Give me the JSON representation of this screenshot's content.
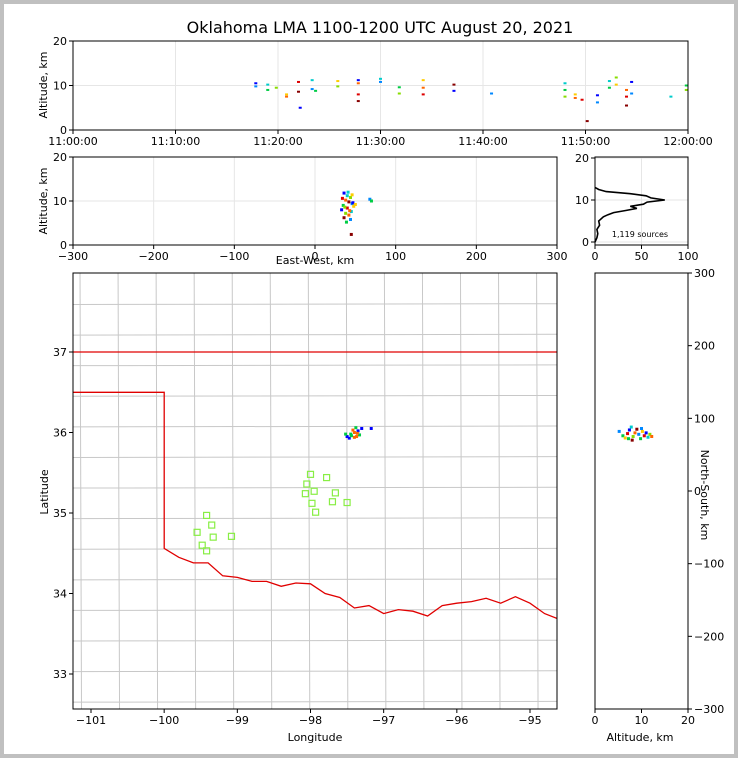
{
  "title": "Oklahoma LMA 1100-1200 UTC August 20, 2021",
  "sources_label": "1,119 sources",
  "colors": {
    "state_border": "#e00000",
    "county_lines": "#c8c8c8",
    "station_marker": "#88ee44",
    "histogram": "#000000"
  },
  "chart_data": [
    {
      "id": "time_altitude",
      "type": "scatter",
      "xlabel": "",
      "ylabel": "Altitude, km",
      "xlim": [
        "11:00:00",
        "12:00:00"
      ],
      "ylim": [
        0,
        20
      ],
      "xticks": [
        "11:00:00",
        "11:10:00",
        "11:20:00",
        "11:30:00",
        "11:40:00",
        "11:50:00",
        "12:00:00"
      ],
      "yticks": [
        "0",
        "10",
        "20"
      ],
      "grid": true,
      "points": [
        {
          "t": "11:17:50",
          "alt": 10.5
        },
        {
          "t": "11:17:50",
          "alt": 9.8
        },
        {
          "t": "11:19:00",
          "alt": 10.2
        },
        {
          "t": "11:19:00",
          "alt": 9.0
        },
        {
          "t": "11:19:50",
          "alt": 9.5
        },
        {
          "t": "11:20:50",
          "alt": 8.0
        },
        {
          "t": "11:20:50",
          "alt": 7.5
        },
        {
          "t": "11:22:00",
          "alt": 10.8
        },
        {
          "t": "11:22:00",
          "alt": 8.6
        },
        {
          "t": "11:22:10",
          "alt": 5.0
        },
        {
          "t": "11:23:20",
          "alt": 9.2
        },
        {
          "t": "11:23:20",
          "alt": 11.2
        },
        {
          "t": "11:23:40",
          "alt": 8.8
        },
        {
          "t": "11:25:50",
          "alt": 9.8
        },
        {
          "t": "11:25:50",
          "alt": 11.0
        },
        {
          "t": "11:27:50",
          "alt": 10.5
        },
        {
          "t": "11:27:50",
          "alt": 8.0
        },
        {
          "t": "11:27:50",
          "alt": 6.5
        },
        {
          "t": "11:27:50",
          "alt": 11.2
        },
        {
          "t": "11:30:00",
          "alt": 10.8
        },
        {
          "t": "11:30:00",
          "alt": 11.5
        },
        {
          "t": "11:31:50",
          "alt": 9.6
        },
        {
          "t": "11:31:50",
          "alt": 8.2
        },
        {
          "t": "11:34:10",
          "alt": 11.2
        },
        {
          "t": "11:34:10",
          "alt": 9.5
        },
        {
          "t": "11:34:10",
          "alt": 8.0
        },
        {
          "t": "11:37:10",
          "alt": 10.2
        },
        {
          "t": "11:37:10",
          "alt": 8.8
        },
        {
          "t": "11:40:50",
          "alt": 8.2
        },
        {
          "t": "11:48:00",
          "alt": 10.5
        },
        {
          "t": "11:48:00",
          "alt": 9.0
        },
        {
          "t": "11:48:00",
          "alt": 7.5
        },
        {
          "t": "11:49:00",
          "alt": 8.0
        },
        {
          "t": "11:49:00",
          "alt": 7.2
        },
        {
          "t": "11:49:40",
          "alt": 6.8
        },
        {
          "t": "11:50:10",
          "alt": 2.0
        },
        {
          "t": "11:51:10",
          "alt": 7.8
        },
        {
          "t": "11:51:10",
          "alt": 6.2
        },
        {
          "t": "11:52:20",
          "alt": 11.0
        },
        {
          "t": "11:52:20",
          "alt": 9.5
        },
        {
          "t": "11:53:00",
          "alt": 11.8
        },
        {
          "t": "11:53:00",
          "alt": 10.2
        },
        {
          "t": "11:54:00",
          "alt": 9.0
        },
        {
          "t": "11:54:00",
          "alt": 7.5
        },
        {
          "t": "11:54:00",
          "alt": 5.5
        },
        {
          "t": "11:54:30",
          "alt": 10.8
        },
        {
          "t": "11:54:30",
          "alt": 8.2
        },
        {
          "t": "11:58:20",
          "alt": 7.5
        },
        {
          "t": "11:59:50",
          "alt": 10.0
        },
        {
          "t": "11:59:50",
          "alt": 9.0
        }
      ]
    },
    {
      "id": "ew_altitude",
      "type": "scatter",
      "xlabel": "East-West, km",
      "ylabel": "Altitude, km",
      "xlim": [
        -300,
        300
      ],
      "ylim": [
        0,
        20
      ],
      "xticks": [
        "−300",
        "−200",
        "−100",
        "0",
        "100",
        "200",
        "300"
      ],
      "yticks": [
        "0",
        "10",
        "20"
      ],
      "grid": true,
      "points": [
        {
          "x": 36,
          "z": 11.8
        },
        {
          "x": 40,
          "z": 11.2
        },
        {
          "x": 44,
          "z": 10.8
        },
        {
          "x": 38,
          "z": 10.2
        },
        {
          "x": 42,
          "z": 9.8
        },
        {
          "x": 46,
          "z": 9.4
        },
        {
          "x": 35,
          "z": 9.0
        },
        {
          "x": 48,
          "z": 8.8
        },
        {
          "x": 40,
          "z": 8.4
        },
        {
          "x": 33,
          "z": 8.0
        },
        {
          "x": 45,
          "z": 7.6
        },
        {
          "x": 38,
          "z": 7.2
        },
        {
          "x": 42,
          "z": 6.8
        },
        {
          "x": 36,
          "z": 6.2
        },
        {
          "x": 44,
          "z": 5.8
        },
        {
          "x": 39,
          "z": 5.2
        },
        {
          "x": 46,
          "z": 11.4
        },
        {
          "x": 34,
          "z": 10.6
        },
        {
          "x": 47,
          "z": 9.6
        },
        {
          "x": 41,
          "z": 12.0
        },
        {
          "x": 37,
          "z": 8.6
        },
        {
          "x": 43,
          "z": 7.8
        },
        {
          "x": 45,
          "z": 2.4
        },
        {
          "x": 68,
          "z": 10.4
        },
        {
          "x": 70,
          "z": 10.0
        },
        {
          "x": 50,
          "z": 9.2
        }
      ]
    },
    {
      "id": "altitude_histogram",
      "type": "line",
      "xlim": [
        0,
        100
      ],
      "ylim": [
        0,
        20
      ],
      "xticks": [
        "0",
        "50",
        "100"
      ],
      "yticks": [
        "0",
        "10",
        "20"
      ],
      "grid": true,
      "profile": [
        {
          "count": 0,
          "alt": 0.0
        },
        {
          "count": 2,
          "alt": 1.0
        },
        {
          "count": 3,
          "alt": 2.0
        },
        {
          "count": 2,
          "alt": 3.0
        },
        {
          "count": 5,
          "alt": 4.0
        },
        {
          "count": 4,
          "alt": 5.0
        },
        {
          "count": 9,
          "alt": 6.0
        },
        {
          "count": 14,
          "alt": 6.5
        },
        {
          "count": 20,
          "alt": 7.0
        },
        {
          "count": 33,
          "alt": 7.5
        },
        {
          "count": 45,
          "alt": 8.0
        },
        {
          "count": 38,
          "alt": 8.5
        },
        {
          "count": 52,
          "alt": 9.0
        },
        {
          "count": 56,
          "alt": 9.5
        },
        {
          "count": 75,
          "alt": 10.0
        },
        {
          "count": 60,
          "alt": 10.5
        },
        {
          "count": 55,
          "alt": 11.0
        },
        {
          "count": 38,
          "alt": 11.5
        },
        {
          "count": 12,
          "alt": 12.0
        },
        {
          "count": 4,
          "alt": 12.5
        },
        {
          "count": 0,
          "alt": 13.0
        }
      ]
    },
    {
      "id": "plan_view",
      "type": "scatter",
      "xlabel": "Longitude",
      "ylabel": "Latitude",
      "xlim": [
        -101.2,
        -94.6
      ],
      "ylim": [
        32.55,
        37.95
      ],
      "xticks": [
        "−101",
        "−100",
        "−99",
        "−98",
        "−97",
        "−96",
        "−95"
      ],
      "yticks": [
        "33",
        "34",
        "35",
        "36",
        "37"
      ],
      "stations": [
        {
          "lon": -98.0,
          "lat": 35.48
        },
        {
          "lon": -98.05,
          "lat": 35.36
        },
        {
          "lon": -97.95,
          "lat": 35.27
        },
        {
          "lon": -98.07,
          "lat": 35.24
        },
        {
          "lon": -97.98,
          "lat": 35.12
        },
        {
          "lon": -97.93,
          "lat": 35.01
        },
        {
          "lon": -97.78,
          "lat": 35.44
        },
        {
          "lon": -97.66,
          "lat": 35.25
        },
        {
          "lon": -97.7,
          "lat": 35.14
        },
        {
          "lon": -97.5,
          "lat": 35.13
        },
        {
          "lon": -99.42,
          "lat": 34.97
        },
        {
          "lon": -99.35,
          "lat": 34.85
        },
        {
          "lon": -99.55,
          "lat": 34.76
        },
        {
          "lon": -99.33,
          "lat": 34.7
        },
        {
          "lon": -99.48,
          "lat": 34.6
        },
        {
          "lon": -99.42,
          "lat": 34.53
        },
        {
          "lon": -99.08,
          "lat": 34.71
        }
      ],
      "sources": [
        {
          "lon": -97.5,
          "lat": 35.95
        },
        {
          "lon": -97.45,
          "lat": 35.98
        },
        {
          "lon": -97.4,
          "lat": 36.0
        },
        {
          "lon": -97.35,
          "lat": 36.02
        },
        {
          "lon": -97.38,
          "lat": 36.06
        },
        {
          "lon": -97.42,
          "lat": 36.03
        },
        {
          "lon": -97.47,
          "lat": 35.93
        },
        {
          "lon": -97.33,
          "lat": 35.97
        },
        {
          "lon": -97.36,
          "lat": 35.99
        },
        {
          "lon": -97.3,
          "lat": 36.05
        },
        {
          "lon": -97.44,
          "lat": 35.96
        },
        {
          "lon": -97.4,
          "lat": 35.94
        },
        {
          "lon": -97.17,
          "lat": 36.05
        },
        {
          "lon": -97.52,
          "lat": 35.98
        },
        {
          "lon": -97.37,
          "lat": 35.95
        }
      ]
    },
    {
      "id": "altitude_ns",
      "type": "scatter",
      "xlabel": "Altitude, km",
      "ylabel": "North-South, km",
      "xlim": [
        0,
        20
      ],
      "ylim": [
        -300,
        300
      ],
      "xticks": [
        "0",
        "10",
        "20"
      ],
      "yticks": [
        "−300",
        "−200",
        "−100",
        "0",
        "100",
        "200",
        "300"
      ],
      "points": [
        {
          "z": 5.2,
          "y": 82
        },
        {
          "z": 6.0,
          "y": 76
        },
        {
          "z": 6.5,
          "y": 73
        },
        {
          "z": 7.0,
          "y": 79
        },
        {
          "z": 7.4,
          "y": 84
        },
        {
          "z": 7.8,
          "y": 88
        },
        {
          "z": 8.2,
          "y": 75
        },
        {
          "z": 8.6,
          "y": 80
        },
        {
          "z": 9.0,
          "y": 85
        },
        {
          "z": 9.4,
          "y": 78
        },
        {
          "z": 9.8,
          "y": 72
        },
        {
          "z": 10.2,
          "y": 82
        },
        {
          "z": 10.6,
          "y": 76
        },
        {
          "z": 11.0,
          "y": 80
        },
        {
          "z": 11.4,
          "y": 74
        },
        {
          "z": 11.8,
          "y": 78
        },
        {
          "z": 12.2,
          "y": 75
        },
        {
          "z": 8.0,
          "y": 70
        },
        {
          "z": 10.0,
          "y": 86
        },
        {
          "z": 7.2,
          "y": 72
        }
      ]
    }
  ]
}
